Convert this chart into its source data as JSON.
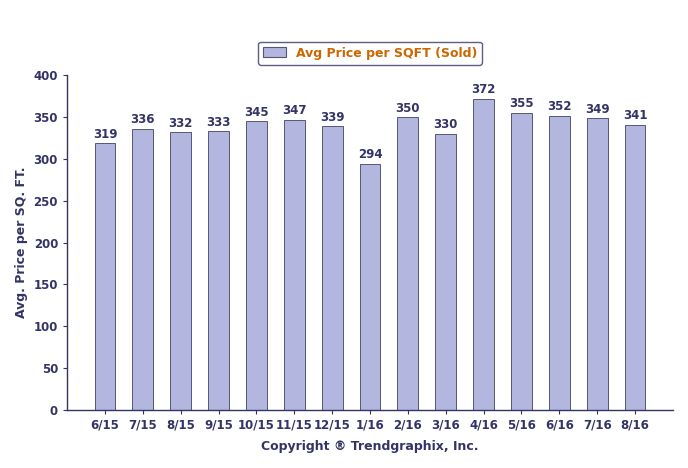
{
  "categories": [
    "6/15",
    "7/15",
    "8/15",
    "9/15",
    "10/15",
    "11/15",
    "12/15",
    "1/16",
    "2/16",
    "3/16",
    "4/16",
    "5/16",
    "6/16",
    "7/16",
    "8/16"
  ],
  "values": [
    319,
    336,
    332,
    333,
    345,
    347,
    339,
    294,
    350,
    330,
    372,
    355,
    352,
    349,
    341
  ],
  "bar_color": "#b3b7e0",
  "bar_edgecolor": "#555577",
  "ylabel": "Avg. Price per SQ. FT.",
  "xlabel": "Copyright ® Trendgraphix, Inc.",
  "legend_label": "Avg Price per SQFT (Sold)",
  "ylim": [
    0,
    400
  ],
  "yticks": [
    0,
    50,
    100,
    150,
    200,
    250,
    300,
    350,
    400
  ],
  "label_fontsize": 9,
  "tick_fontsize": 8.5,
  "annotation_fontsize": 8.5,
  "annotation_color": "#333366",
  "xlabel_color": "#333366",
  "ylabel_color": "#333366",
  "tick_color": "#333366",
  "legend_text_color": "#cc6600",
  "background_color": "#ffffff",
  "bar_width": 0.55
}
